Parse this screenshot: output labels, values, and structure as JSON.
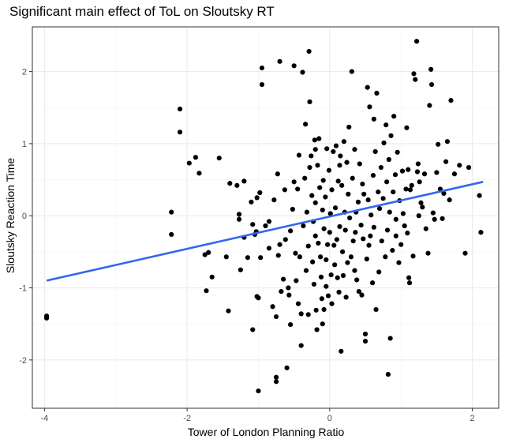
{
  "chart_data": {
    "type": "scatter",
    "title": "Significant main effect of ToL on Sloutsky RT",
    "xlabel": "Tower of London Planning Ratio",
    "ylabel": "Sloutsky Reaction Time",
    "xlim": [
      -4.17,
      2.37
    ],
    "ylim": [
      -2.67,
      2.62
    ],
    "x_ticks": [
      -4,
      -2,
      0,
      2
    ],
    "y_ticks": [
      -2,
      -1,
      0,
      1,
      2
    ],
    "x_tick_labels": [
      "-4",
      "-2",
      "0",
      "2"
    ],
    "y_tick_labels": [
      "-2",
      "-1",
      "0",
      "1",
      "2"
    ],
    "grid": true,
    "theme": "bw",
    "point_color": "#000000",
    "fit_line_color": "#3366ee",
    "fit_line": {
      "x": [
        -3.97,
        2.15
      ],
      "y": [
        -0.9,
        0.47
      ]
    },
    "series": [
      {
        "points": [
          [
            -3.97,
            -1.39
          ],
          [
            -3.97,
            -1.42
          ],
          [
            -2.22,
            0.05
          ],
          [
            -2.22,
            -0.26
          ],
          [
            -2.1,
            1.48
          ],
          [
            -2.1,
            1.16
          ],
          [
            -1.97,
            0.73
          ],
          [
            -1.88,
            0.81
          ],
          [
            -1.83,
            0.59
          ],
          [
            -1.75,
            -0.54
          ],
          [
            -1.73,
            -1.04
          ],
          [
            -1.7,
            -0.51
          ],
          [
            -1.65,
            -0.85
          ],
          [
            -1.55,
            0.8
          ],
          [
            -1.45,
            -0.57
          ],
          [
            -1.42,
            -1.32
          ],
          [
            -1.4,
            0.45
          ],
          [
            -1.3,
            0.42
          ],
          [
            -1.27,
            0.02
          ],
          [
            -1.27,
            -0.05
          ],
          [
            -1.25,
            -0.75
          ],
          [
            -1.2,
            -0.3
          ],
          [
            -1.15,
            -0.58
          ],
          [
            -1.1,
            0.19
          ],
          [
            -1.08,
            -0.12
          ],
          [
            -1.08,
            -1.58
          ],
          [
            -1.05,
            -0.26
          ],
          [
            -1.03,
            -0.22
          ],
          [
            -1.02,
            0.25
          ],
          [
            -1.02,
            -1.12
          ],
          [
            -1.0,
            -1.14
          ],
          [
            -1.0,
            -2.43
          ],
          [
            -0.98,
            0.32
          ],
          [
            -0.97,
            -0.58
          ],
          [
            -0.95,
            2.05
          ],
          [
            -0.95,
            1.82
          ],
          [
            -0.9,
            -0.14
          ],
          [
            -0.85,
            -0.08
          ],
          [
            -0.85,
            -0.45
          ],
          [
            -0.8,
            -1.26
          ],
          [
            -0.78,
            0.22
          ],
          [
            -0.75,
            -1.4
          ],
          [
            -0.75,
            -2.24
          ],
          [
            -0.75,
            -2.3
          ],
          [
            -0.73,
            0.58
          ],
          [
            -0.72,
            -0.55
          ],
          [
            -0.7,
            2.14
          ],
          [
            -0.7,
            -0.4
          ],
          [
            -0.68,
            -1.05
          ],
          [
            -0.65,
            -0.88
          ],
          [
            -0.63,
            0.36
          ],
          [
            -0.62,
            -0.33
          ],
          [
            -0.6,
            -2.11
          ],
          [
            -0.58,
            -1.0
          ],
          [
            -0.57,
            -1.1
          ],
          [
            -0.55,
            -0.21
          ],
          [
            -0.55,
            -1.51
          ],
          [
            -0.52,
            0.09
          ],
          [
            -0.5,
            2.08
          ],
          [
            -0.5,
            0.47
          ],
          [
            -0.48,
            -0.52
          ],
          [
            -0.47,
            -0.9
          ],
          [
            -0.45,
            0.37
          ],
          [
            -0.44,
            -1.22
          ],
          [
            -0.43,
            0.84
          ],
          [
            -0.42,
            -0.57
          ],
          [
            -0.4,
            -1.36
          ],
          [
            -0.4,
            -1.8
          ],
          [
            -0.38,
            1.99
          ],
          [
            -0.37,
            -0.14
          ],
          [
            -0.35,
            0.52
          ],
          [
            -0.34,
            1.27
          ],
          [
            -0.33,
            -0.76
          ],
          [
            -0.32,
            0.05
          ],
          [
            -0.3,
            -0.42
          ],
          [
            -0.3,
            -1.37
          ],
          [
            -0.29,
            2.28
          ],
          [
            -0.28,
            1.58
          ],
          [
            -0.28,
            0.67
          ],
          [
            -0.26,
            0.83
          ],
          [
            -0.25,
            0.28
          ],
          [
            -0.24,
            -0.64
          ],
          [
            -0.23,
            -0.08
          ],
          [
            -0.22,
            -0.95
          ],
          [
            -0.21,
            1.05
          ],
          [
            -0.2,
            0.18
          ],
          [
            -0.2,
            -0.28
          ],
          [
            -0.19,
            -1.31
          ],
          [
            -0.18,
            -1.58
          ],
          [
            -0.17,
            0.7
          ],
          [
            -0.16,
            -0.38
          ],
          [
            -0.15,
            1.07
          ],
          [
            -0.14,
            0.39
          ],
          [
            -0.13,
            -0.57
          ],
          [
            -0.12,
            -0.85
          ],
          [
            -0.11,
            -1.15
          ],
          [
            -0.1,
            0.08
          ],
          [
            -0.1,
            -1.5
          ],
          [
            -0.09,
            0.49
          ],
          [
            -0.08,
            -0.18
          ],
          [
            -0.08,
            -1.3
          ],
          [
            -0.06,
            0.26
          ],
          [
            -0.05,
            -0.61
          ],
          [
            -0.05,
            -0.98
          ],
          [
            -0.04,
            0.93
          ],
          [
            -0.03,
            -0.4
          ],
          [
            -0.02,
            -1.11
          ],
          [
            -0.01,
            0.63
          ],
          [
            0.0,
            -0.23
          ],
          [
            0.01,
            0.03
          ],
          [
            0.02,
            -0.82
          ],
          [
            0.03,
            0.36
          ],
          [
            0.03,
            -1.22
          ],
          [
            0.05,
            0.89
          ],
          [
            0.06,
            -0.41
          ],
          [
            0.07,
            -0.68
          ],
          [
            0.08,
            0.11
          ],
          [
            0.09,
            0.97
          ],
          [
            0.1,
            -0.33
          ],
          [
            0.11,
            -0.86
          ],
          [
            0.12,
            0.48
          ],
          [
            0.13,
            -1.06
          ],
          [
            0.14,
            -0.15
          ],
          [
            0.15,
            0.83
          ],
          [
            0.16,
            -1.88
          ],
          [
            0.17,
            0.42
          ],
          [
            0.18,
            -0.5
          ],
          [
            0.19,
            -0.83
          ],
          [
            0.2,
            1.03
          ],
          [
            0.21,
            0.05
          ],
          [
            0.22,
            -0.2
          ],
          [
            0.23,
            -1.13
          ],
          [
            0.24,
            0.74
          ],
          [
            0.25,
            -0.65
          ],
          [
            0.26,
            0.3
          ],
          [
            0.27,
            1.23
          ],
          [
            0.28,
            -0.03
          ],
          [
            0.3,
            -0.57
          ],
          [
            0.31,
            2.0
          ],
          [
            0.32,
            0.52
          ],
          [
            0.33,
            -0.35
          ],
          [
            0.35,
            0.92
          ],
          [
            0.36,
            -0.23
          ],
          [
            0.37,
            0.05
          ],
          [
            0.38,
            -0.89
          ],
          [
            0.4,
            0.19
          ],
          [
            0.41,
            -1.05
          ],
          [
            0.42,
            0.72
          ],
          [
            0.44,
            -0.13
          ],
          [
            0.45,
            -1.1
          ],
          [
            0.46,
            0.44
          ],
          [
            0.47,
            -0.32
          ],
          [
            0.48,
            0.3
          ],
          [
            0.5,
            -1.64
          ],
          [
            0.5,
            -1.74
          ],
          [
            0.52,
            -0.6
          ],
          [
            0.53,
            1.78
          ],
          [
            0.54,
            0.22
          ],
          [
            0.55,
            -0.41
          ],
          [
            0.56,
            1.51
          ],
          [
            0.57,
            -0.28
          ],
          [
            0.58,
            0.01
          ],
          [
            0.6,
            -0.93
          ],
          [
            0.61,
            0.56
          ],
          [
            0.62,
            -0.16
          ],
          [
            0.64,
            0.89
          ],
          [
            0.65,
            -1.3
          ],
          [
            0.66,
            1.7
          ],
          [
            0.68,
            0.33
          ],
          [
            0.69,
            -0.78
          ],
          [
            0.7,
            0.1
          ],
          [
            0.72,
            0.67
          ],
          [
            0.73,
            -0.35
          ],
          [
            0.75,
            0.24
          ],
          [
            0.76,
            1.01
          ],
          [
            0.78,
            -0.57
          ],
          [
            0.79,
            1.26
          ],
          [
            0.8,
            0.47
          ],
          [
            0.81,
            -0.2
          ],
          [
            0.82,
            -2.2
          ],
          [
            0.83,
            0.78
          ],
          [
            0.84,
            0.05
          ],
          [
            0.85,
            -1.7
          ],
          [
            0.86,
            1.11
          ],
          [
            0.88,
            -0.48
          ],
          [
            0.89,
            0.33
          ],
          [
            0.9,
            1.38
          ],
          [
            0.92,
            0.57
          ],
          [
            0.93,
            -0.05
          ],
          [
            0.95,
            0.88
          ],
          [
            0.97,
            -0.65
          ],
          [
            0.98,
            0.21
          ],
          [
            1.0,
            -0.4
          ],
          [
            1.02,
            0.62
          ],
          [
            1.03,
            0.03
          ],
          [
            1.05,
            -0.14
          ],
          [
            1.07,
            0.37
          ],
          [
            1.08,
            1.22
          ],
          [
            1.09,
            -0.24
          ],
          [
            1.1,
            0.64
          ],
          [
            1.11,
            -0.86
          ],
          [
            1.12,
            -0.93
          ],
          [
            1.13,
            0.36
          ],
          [
            1.15,
            0.42
          ],
          [
            1.17,
            -0.56
          ],
          [
            1.18,
            1.97
          ],
          [
            1.2,
            1.89
          ],
          [
            1.22,
            2.42
          ],
          [
            1.23,
            0.61
          ],
          [
            1.24,
            0.72
          ],
          [
            1.25,
            0.0
          ],
          [
            1.26,
            0.47
          ],
          [
            1.28,
            0.18
          ],
          [
            1.3,
            0.12
          ],
          [
            1.33,
            0.58
          ],
          [
            1.35,
            -0.18
          ],
          [
            1.38,
            -0.52
          ],
          [
            1.4,
            1.53
          ],
          [
            1.42,
            2.03
          ],
          [
            1.43,
            1.82
          ],
          [
            1.45,
            0.04
          ],
          [
            1.47,
            -0.05
          ],
          [
            1.5,
            0.6
          ],
          [
            1.52,
            0.99
          ],
          [
            1.55,
            0.37
          ],
          [
            1.58,
            -0.04
          ],
          [
            1.6,
            0.31
          ],
          [
            1.63,
            0.75
          ],
          [
            1.65,
            1.03
          ],
          [
            1.68,
            0.22
          ],
          [
            1.7,
            1.6
          ],
          [
            1.75,
            0.58
          ],
          [
            1.82,
            0.7
          ],
          [
            1.9,
            -0.52
          ],
          [
            1.95,
            0.67
          ],
          [
            2.1,
            0.28
          ],
          [
            2.12,
            -0.23
          ],
          [
            -1.2,
            0.48
          ],
          [
            0.62,
            1.34
          ],
          [
            0.14,
            0.7
          ],
          [
            -0.2,
            0.92
          ],
          [
            0.93,
            -0.28
          ],
          [
            0.35,
            -0.76
          ]
        ]
      }
    ]
  }
}
